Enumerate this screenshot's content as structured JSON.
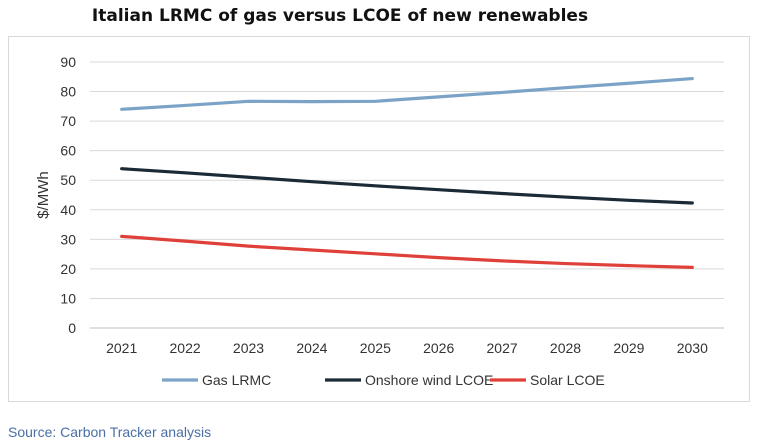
{
  "chart_data": {
    "type": "line",
    "title": "Italian LRMC of gas versus LCOE of new renewables",
    "ylabel": "$/MWh",
    "xlabel": "",
    "categories": [
      "2021",
      "2022",
      "2023",
      "2024",
      "2025",
      "2026",
      "2027",
      "2028",
      "2029",
      "2030"
    ],
    "yticks": [
      "0",
      "10",
      "20",
      "30",
      "40",
      "50",
      "60",
      "70",
      "80",
      "90"
    ],
    "ylim": [
      0,
      90
    ],
    "grid": true,
    "legend_position": "bottom",
    "series": [
      {
        "name": "Gas LRMC",
        "color": "#7ba3c8",
        "values": [
          74,
          75.3,
          76.7,
          76.6,
          76.7,
          78.2,
          79.7,
          81.3,
          82.8,
          84.4
        ]
      },
      {
        "name": "Onshore wind LCOE",
        "color": "#1a2a36",
        "values": [
          53.9,
          52.5,
          51,
          49.5,
          48.1,
          46.8,
          45.5,
          44.3,
          43.2,
          42.3
        ]
      },
      {
        "name": "Solar LCOE",
        "color": "#e0403a",
        "values": [
          31,
          29.4,
          27.7,
          26.4,
          25.1,
          23.8,
          22.7,
          21.8,
          21.1,
          20.5
        ]
      }
    ]
  },
  "source": "Source: Carbon Tracker analysis"
}
